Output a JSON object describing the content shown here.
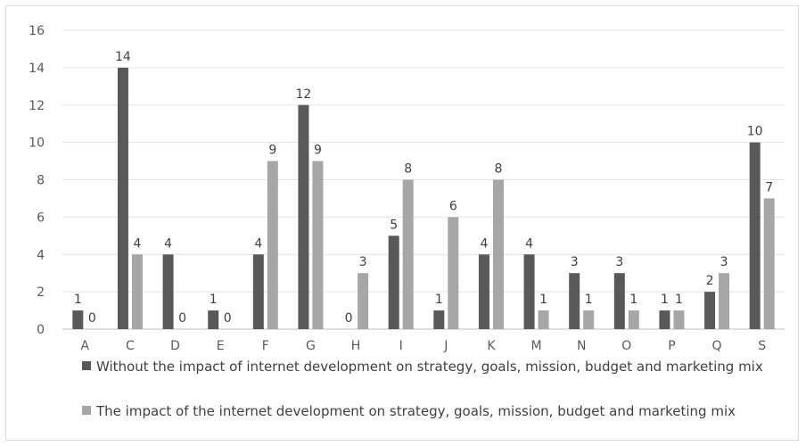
{
  "chart_data": {
    "type": "bar",
    "categories": [
      "A",
      "C",
      "D",
      "E",
      "F",
      "G",
      "H",
      "I",
      "J",
      "K",
      "M",
      "N",
      "O",
      "P",
      "Q",
      "S"
    ],
    "series": [
      {
        "name": "Without the impact of internet development on strategy, goals, mission, budget and marketing mix",
        "color": "#595959",
        "values": [
          1,
          14,
          4,
          1,
          4,
          12,
          0,
          5,
          1,
          4,
          4,
          3,
          3,
          1,
          2,
          10
        ]
      },
      {
        "name": "The impact of the internet development on strategy, goals, mission, budget and marketing mix",
        "color": "#a6a6a6",
        "values": [
          0,
          4,
          0,
          0,
          9,
          9,
          3,
          8,
          6,
          8,
          1,
          1,
          1,
          1,
          3,
          7
        ]
      }
    ],
    "ylim": [
      0,
      16
    ],
    "yticks": [
      0,
      2,
      4,
      6,
      8,
      10,
      12,
      14,
      16
    ],
    "grid": true,
    "legend_position": "bottom",
    "data_labels": true,
    "title": "",
    "xlabel": "",
    "ylabel": ""
  }
}
